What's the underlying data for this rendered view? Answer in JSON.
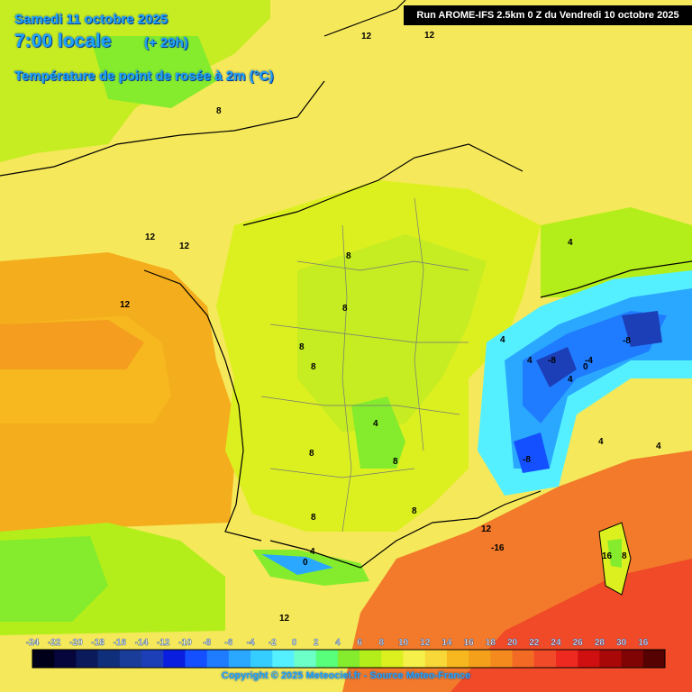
{
  "header": {
    "date": "Samedi 11 octobre 2025",
    "time": "7:00 locale",
    "lead": "(+ 29h)",
    "parameter": "Température de point de rosée à 2m (°C)"
  },
  "run_info": "Run AROME-IFS 2.5km 0 Z du Vendredi 10 octobre 2025",
  "copyright": "Copyright © 2025 Meteociel.fr - Source Meteo-France",
  "contour_labels": [
    "12",
    "12",
    "8",
    "12",
    "12",
    "12",
    "8",
    "8",
    "8",
    "8",
    "4",
    "4",
    "4",
    "8",
    "8",
    "8",
    "4",
    "-8",
    "-8",
    "-4",
    "0",
    "-8",
    "4",
    "4",
    "8",
    "4",
    "12",
    "-16",
    "16",
    "12",
    "8",
    "4",
    "0"
  ],
  "legend": {
    "ticks": [
      "-24",
      "-22",
      "-20",
      "-18",
      "-16",
      "-14",
      "-12",
      "-10",
      "-8",
      "-6",
      "-4",
      "-2",
      "0",
      "2",
      "4",
      "6",
      "8",
      "10",
      "12",
      "14",
      "16",
      "18",
      "20",
      "22",
      "24",
      "26",
      "28",
      "30",
      "16"
    ],
    "colors": [
      "#00001a",
      "#06063d",
      "#0b1a5a",
      "#102f7a",
      "#1a3d99",
      "#1c3fb8",
      "#0a1ee0",
      "#1450ff",
      "#1f7cff",
      "#2aa8ff",
      "#35ccff",
      "#55f0ff",
      "#6dffc8",
      "#58ff7a",
      "#84ec2c",
      "#b4ee1a",
      "#dcf020",
      "#f5f04a",
      "#f8d838",
      "#f6b81e",
      "#f4a01a",
      "#f48a1e",
      "#f26a24",
      "#f04a28",
      "#ee2a20",
      "#d01010",
      "#a80808",
      "#800404",
      "#560202"
    ]
  },
  "colors": {
    "ocean_warm": "#f4ad1c",
    "land_mid": "#f5e85a",
    "land_low": "#c6ec22",
    "green": "#84ec2c",
    "mediterranean": "#f27a2a",
    "alps_blue": "#1f7cff"
  }
}
